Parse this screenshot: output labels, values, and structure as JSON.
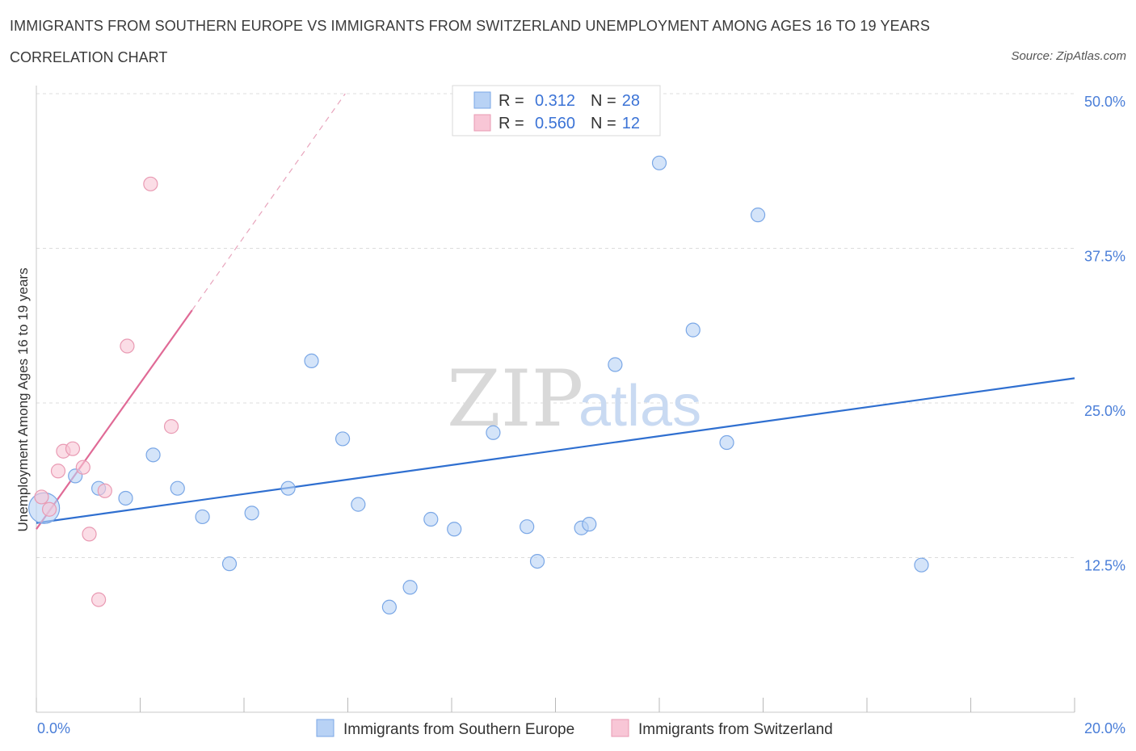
{
  "header": {
    "title": "IMMIGRANTS FROM SOUTHERN EUROPE VS IMMIGRANTS FROM SWITZERLAND UNEMPLOYMENT AMONG AGES 16 TO 19 YEARS",
    "subtitle": "CORRELATION CHART",
    "source": "Source: ZipAtlas.com"
  },
  "watermark": {
    "zip": "ZIP",
    "atlas": "atlas"
  },
  "colors": {
    "blue_fill": "#b8d2f5",
    "blue_stroke": "#7aa7e6",
    "blue_line": "#2f6fd0",
    "pink_fill": "#f8c6d6",
    "pink_stroke": "#e99ab3",
    "pink_line": "#e06a96",
    "grid": "#dcdcdc",
    "tick_text": "#4a7ed8"
  },
  "chart_data": {
    "type": "scatter",
    "title": "IMMIGRANTS FROM SOUTHERN EUROPE VS IMMIGRANTS FROM SWITZERLAND UNEMPLOYMENT AMONG AGES 16 TO 19 YEARS",
    "xlabel": "",
    "ylabel": "Unemployment Among Ages 16 to 19 years",
    "xlim": [
      0,
      20
    ],
    "ylim": [
      0,
      50
    ],
    "x_tick_labels": [
      "0.0%",
      "20.0%"
    ],
    "y_ticks": [
      {
        "value": 12.5,
        "label": "12.5%"
      },
      {
        "value": 25.0,
        "label": "25.0%"
      },
      {
        "value": 37.5,
        "label": "37.5%"
      },
      {
        "value": 50.0,
        "label": "50.0%"
      }
    ],
    "grid": true,
    "legend_position": "top-center",
    "legend": [
      {
        "series": "blue",
        "r_label": "R =",
        "r_value": "0.312",
        "n_label": "N =",
        "n_value": "28"
      },
      {
        "series": "pink",
        "r_label": "R =",
        "r_value": "0.560",
        "n_label": "N =",
        "n_value": "12"
      }
    ],
    "series": [
      {
        "name": "Immigrants from Southern Europe",
        "color": "blue",
        "points": [
          {
            "x": 0.15,
            "y": 16.5,
            "large": true
          },
          {
            "x": 0.75,
            "y": 19.1
          },
          {
            "x": 1.2,
            "y": 18.1
          },
          {
            "x": 1.72,
            "y": 17.3
          },
          {
            "x": 2.25,
            "y": 20.8
          },
          {
            "x": 2.72,
            "y": 18.1
          },
          {
            "x": 3.2,
            "y": 15.8
          },
          {
            "x": 3.72,
            "y": 12.0
          },
          {
            "x": 4.15,
            "y": 16.1
          },
          {
            "x": 4.85,
            "y": 18.1
          },
          {
            "x": 5.3,
            "y": 28.4
          },
          {
            "x": 5.9,
            "y": 22.1
          },
          {
            "x": 6.2,
            "y": 16.8
          },
          {
            "x": 6.8,
            "y": 8.5
          },
          {
            "x": 7.2,
            "y": 10.1
          },
          {
            "x": 7.6,
            "y": 15.6
          },
          {
            "x": 8.05,
            "y": 14.8
          },
          {
            "x": 8.8,
            "y": 22.6
          },
          {
            "x": 9.45,
            "y": 15.0
          },
          {
            "x": 9.65,
            "y": 12.2
          },
          {
            "x": 10.5,
            "y": 14.9
          },
          {
            "x": 10.65,
            "y": 15.2
          },
          {
            "x": 11.15,
            "y": 28.1
          },
          {
            "x": 12.0,
            "y": 44.4
          },
          {
            "x": 12.65,
            "y": 30.9
          },
          {
            "x": 13.3,
            "y": 21.8
          },
          {
            "x": 13.9,
            "y": 40.2
          },
          {
            "x": 17.05,
            "y": 11.9
          }
        ],
        "trend": {
          "x0": 0,
          "y0": 15.3,
          "x1": 20,
          "y1": 27.0,
          "style": "solid"
        }
      },
      {
        "name": "Immigrants from Switzerland",
        "color": "pink",
        "points": [
          {
            "x": 0.1,
            "y": 17.4
          },
          {
            "x": 0.25,
            "y": 16.4
          },
          {
            "x": 0.42,
            "y": 19.5
          },
          {
            "x": 0.52,
            "y": 21.1
          },
          {
            "x": 0.7,
            "y": 21.3
          },
          {
            "x": 0.9,
            "y": 19.8
          },
          {
            "x": 1.02,
            "y": 14.4
          },
          {
            "x": 1.2,
            "y": 9.1
          },
          {
            "x": 1.32,
            "y": 17.9
          },
          {
            "x": 1.75,
            "y": 29.6
          },
          {
            "x": 2.2,
            "y": 42.7
          },
          {
            "x": 2.6,
            "y": 23.1
          }
        ],
        "trend": {
          "x0": 0,
          "y0": 14.8,
          "x1": 3.0,
          "y1": 32.5,
          "style": "solid",
          "extension": {
            "x0": 3.0,
            "y0": 32.5,
            "x1": 5.95,
            "y1": 50.0,
            "style": "dashed"
          }
        }
      }
    ],
    "bottom_legend": [
      "Immigrants from Southern Europe",
      "Immigrants from Switzerland"
    ]
  }
}
